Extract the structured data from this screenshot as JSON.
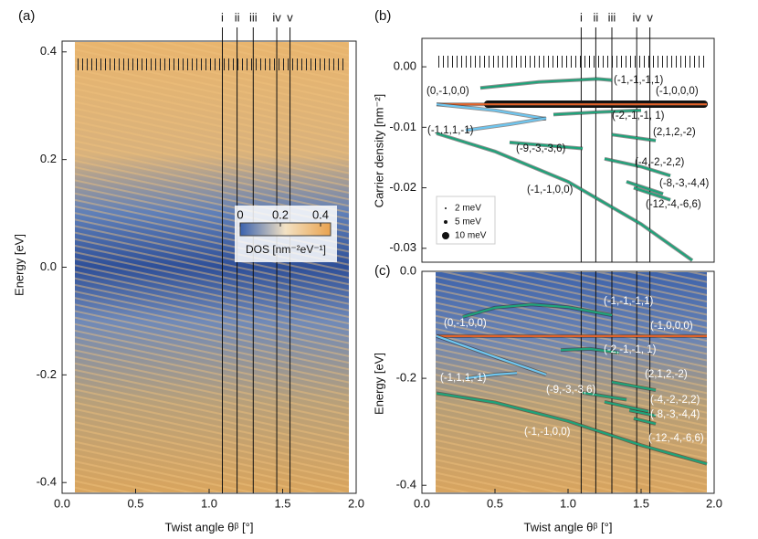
{
  "chart_data": [
    {
      "type": "heatmap",
      "panel_label": "(a)",
      "xlabel": "Twist angle θᵝ [°]",
      "ylabel": "Energy [eV]",
      "xlim": [
        0,
        2
      ],
      "xticks": [
        {
          "value": 0,
          "label": "0.0"
        },
        {
          "value": 0.5,
          "label": "0.5"
        },
        {
          "value": 1,
          "label": "1.0"
        },
        {
          "value": 1.5,
          "label": "1.5"
        },
        {
          "value": 2,
          "label": "2.0"
        }
      ],
      "ylim": [
        -0.42,
        0.42
      ],
      "yticks": [
        {
          "value": -0.4,
          "label": "-0.4"
        },
        {
          "value": -0.2,
          "label": "-0.2"
        },
        {
          "value": 0,
          "label": "0.0"
        },
        {
          "value": 0.2,
          "label": "0.2"
        },
        {
          "value": 0.4,
          "label": "0.4"
        }
      ],
      "markers": {
        "labels": [
          "i",
          "ii",
          "iii",
          "iv",
          "v"
        ],
        "x": [
          1.09,
          1.19,
          1.3,
          1.46,
          1.55
        ]
      },
      "colorbar": {
        "label": "DOS [nm⁻²eV⁻¹]",
        "lim": [
          0,
          0.45
        ],
        "ticks": [
          0,
          0.2,
          0.4
        ],
        "colors": [
          "#3a62ae",
          "#f3e2c4",
          "#e9a24e"
        ]
      },
      "series": []
    },
    {
      "type": "line",
      "panel_label": "(b)",
      "ylabel": "Carrier density [nm⁻²]",
      "xlim": [
        0,
        2
      ],
      "ylim": [
        -0.0323,
        0.0047
      ],
      "yticks": [
        {
          "value": 0,
          "label": "0.00"
        },
        {
          "value": -0.01,
          "label": "-0.01"
        },
        {
          "value": -0.02,
          "label": "-0.02"
        },
        {
          "value": -0.03,
          "label": "-0.03"
        }
      ],
      "markers": {
        "labels": [
          "i",
          "ii",
          "iii",
          "iv",
          "v"
        ],
        "x": [
          1.09,
          1.19,
          1.3,
          1.47,
          1.56
        ]
      },
      "legend": [
        "2 meV",
        "5 meV",
        "10 meV"
      ],
      "series": [
        {
          "name": "(-1,-1,-1,1)",
          "color": "#1fa37a",
          "x": [
            0.4,
            0.8,
            1.2,
            1.3
          ],
          "values": [
            -0.0035,
            -0.0025,
            -0.002,
            -0.0022
          ]
        },
        {
          "name": "(-1,0,0,0)",
          "color": "#e0622a",
          "x": [
            0.1,
            1.95
          ],
          "values": [
            -0.0062,
            -0.0062
          ]
        },
        {
          "name": "(0,-1,0,0)",
          "color": "#6ec6f0",
          "x": [
            0.1,
            0.5,
            0.85
          ],
          "values": [
            -0.0062,
            -0.0072,
            -0.0086
          ]
        },
        {
          "name": "(-2,-1,-1, 1)",
          "color": "#1fa37a",
          "x": [
            0.9,
            1.2,
            1.5
          ],
          "values": [
            -0.0079,
            -0.0075,
            -0.0072
          ]
        },
        {
          "name": "(-1,1,1,-1)",
          "color": "#6ec6f0",
          "x": [
            0.3,
            0.6,
            0.85
          ],
          "values": [
            -0.0105,
            -0.0095,
            -0.0085
          ]
        },
        {
          "name": "(2,1,2,-2)",
          "color": "#1fa37a",
          "x": [
            1.3,
            1.6
          ],
          "values": [
            -0.0112,
            -0.0122
          ]
        },
        {
          "name": "(-9,-3,-3,6)",
          "color": "#1fa37a",
          "x": [
            0.6,
            1.1
          ],
          "values": [
            -0.0125,
            -0.0135
          ]
        },
        {
          "name": "(-4,-2,-2,2)",
          "color": "#1fa37a",
          "x": [
            1.25,
            1.5,
            1.7
          ],
          "values": [
            -0.0152,
            -0.0165,
            -0.018
          ]
        },
        {
          "name": "(-8,-3,-4,4)",
          "color": "#1fa37a",
          "x": [
            1.4,
            1.65
          ],
          "values": [
            -0.019,
            -0.021
          ]
        },
        {
          "name": "(-12,-4,-6,6)",
          "color": "#1fa37a",
          "x": [
            1.45,
            1.7
          ],
          "values": [
            -0.02,
            -0.022
          ]
        },
        {
          "name": "(-1,-1,0,0)",
          "color": "#1fa37a",
          "x": [
            0.1,
            0.5,
            1.0,
            1.5,
            1.85
          ],
          "values": [
            -0.011,
            -0.014,
            -0.019,
            -0.026,
            -0.032
          ]
        }
      ]
    },
    {
      "type": "line",
      "panel_label": "(c)",
      "xlabel": "Twist angle θᵝ [°]",
      "ylabel": "Energy [eV]",
      "xlim": [
        0,
        2
      ],
      "xticks": [
        {
          "value": 0,
          "label": "0.0"
        },
        {
          "value": 0.5,
          "label": "0.5"
        },
        {
          "value": 1,
          "label": "1.0"
        },
        {
          "value": 1.5,
          "label": "1.5"
        },
        {
          "value": 2,
          "label": "2.0"
        }
      ],
      "ylim": [
        -0.415,
        0
      ],
      "yticks": [
        {
          "value": 0,
          "label": "0.0"
        },
        {
          "value": -0.2,
          "label": "-0.2"
        },
        {
          "value": -0.4,
          "label": "-0.4"
        }
      ],
      "series": [
        {
          "name": "(-1,-1,-1,1)",
          "color": "#1fa37a",
          "x": [
            0.28,
            0.5,
            0.75,
            1.0,
            1.3
          ],
          "values": [
            -0.085,
            -0.068,
            -0.062,
            -0.067,
            -0.082
          ]
        },
        {
          "name": "(-1,0,0,0)",
          "color": "#e0622a",
          "x": [
            0.1,
            1.95
          ],
          "values": [
            -0.121,
            -0.121
          ]
        },
        {
          "name": "(0,-1,0,0)",
          "color": "#6ec6f0",
          "x": [
            0.1,
            0.5,
            0.85
          ],
          "values": [
            -0.121,
            -0.16,
            -0.193
          ]
        },
        {
          "name": "(-2,-1,-1, 1)",
          "color": "#1fa37a",
          "x": [
            0.95,
            1.15,
            1.35
          ],
          "values": [
            -0.147,
            -0.145,
            -0.152
          ]
        },
        {
          "name": "(-1,1,1,-1)",
          "color": "#6ec6f0",
          "x": [
            0.3,
            0.5,
            0.65
          ],
          "values": [
            -0.2,
            -0.193,
            -0.19
          ]
        },
        {
          "name": "(2,1,2,-2)",
          "color": "#1fa37a",
          "x": [
            1.3,
            1.6
          ],
          "values": [
            -0.207,
            -0.222
          ]
        },
        {
          "name": "(-9,-3,-3,6)",
          "color": "#1fa37a",
          "x": [
            1.1,
            1.4
          ],
          "values": [
            -0.227,
            -0.24
          ]
        },
        {
          "name": "(-4,-2,-2,2)",
          "color": "#1fa37a",
          "x": [
            1.25,
            1.55
          ],
          "values": [
            -0.244,
            -0.262
          ]
        },
        {
          "name": "(-8,-3,-4,4)",
          "color": "#1fa37a",
          "x": [
            1.42,
            1.6
          ],
          "values": [
            -0.26,
            -0.27
          ]
        },
        {
          "name": "(-12,-4,-6,6)",
          "color": "#1fa37a",
          "x": [
            1.45,
            1.6
          ],
          "values": [
            -0.275,
            -0.285
          ]
        },
        {
          "name": "(-1,-1,0,0)",
          "color": "#1fa37a",
          "x": [
            0.1,
            0.5,
            1.0,
            1.5,
            1.95
          ],
          "values": [
            -0.228,
            -0.245,
            -0.28,
            -0.325,
            -0.36
          ]
        }
      ]
    }
  ]
}
